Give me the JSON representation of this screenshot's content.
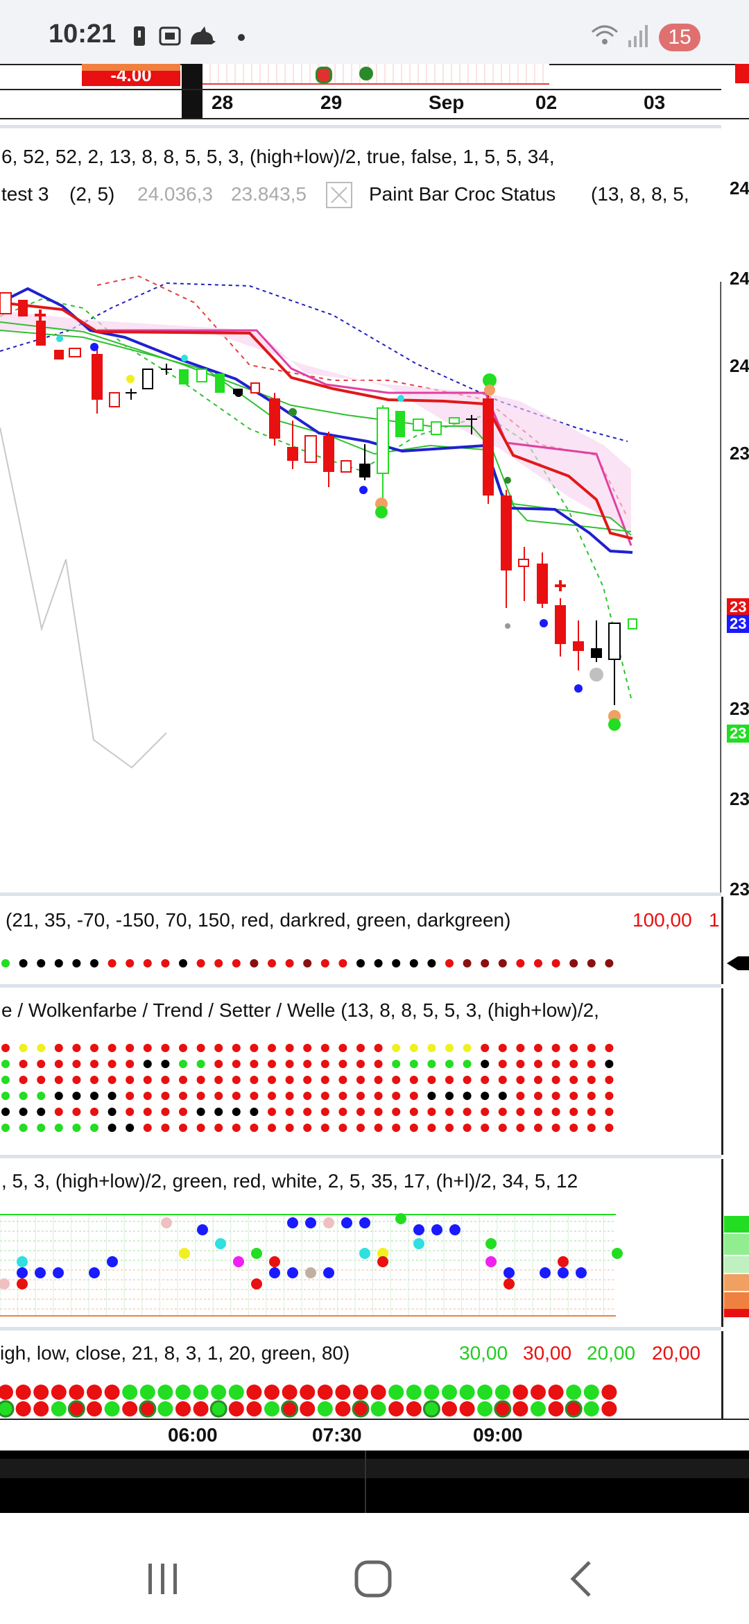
{
  "status_bar": {
    "time": "10:21",
    "battery": "15",
    "icons": [
      "message-icon",
      "screenshot-icon",
      "cat-icon",
      "dot-icon",
      "wifi-icon",
      "signal-icon"
    ]
  },
  "top_axis": {
    "labels": [
      "28",
      "29",
      "Sep",
      "02",
      "03"
    ],
    "neg_value": "-4.00"
  },
  "main_panel": {
    "params_line1": "6,  52,  52,  2,  13,  8,  8,  5,  5,  3,  (high+low)/2,  true,  false,  1,  5,  5,  34,",
    "test_label": "test 3",
    "test_params": "(2,  5)",
    "value1": "24.036,3",
    "value2": "23.843,5",
    "paint_bar_label": "Paint Bar Croc Status",
    "paint_bar_params": "(13,  8,  8,  5,",
    "right_axis_labels": [
      "24",
      "24",
      "24",
      "23",
      "23",
      "23",
      "23"
    ],
    "price_tags": [
      "23",
      "23",
      "23"
    ]
  },
  "panel2": {
    "params": "(21,  35,  -70,  -150,  70,  150,  red,  darkred,  green,  darkgreen)",
    "value": "100,00",
    "value_tail": "1"
  },
  "panel3": {
    "params": "e / Wolkenfarbe / Trend / Setter / Welle    (13,  8,  8,  5,  5,  3,  (high+low)/2,"
  },
  "panel4": {
    "params": ",  5,  3,  (high+low)/2,  green,  red,  white,  2,  5,  35,  17,  (h+l)/2,  34,  5,  12"
  },
  "panel5": {
    "params": "igh,  low,  close,  21,  8,  3,  1,  20,  green,  80)",
    "v1": "30,00",
    "v2": "30,00",
    "v3": "20,00",
    "v4": "20,00"
  },
  "time_axis": {
    "labels": [
      "06:00",
      "07:30",
      "09:00"
    ]
  },
  "colors": {
    "red": "#e81010",
    "green": "#22dd22",
    "blue": "#1a1aff",
    "magenta": "#e040a0",
    "black": "#000000"
  }
}
